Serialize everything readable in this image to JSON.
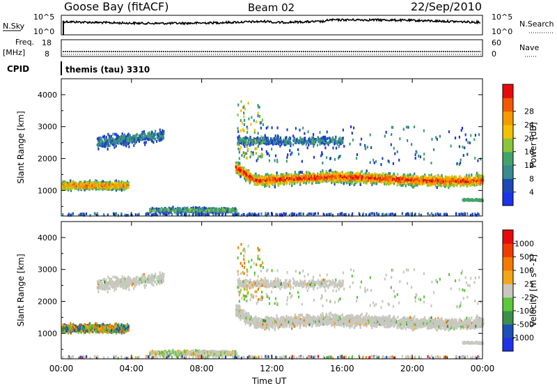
{
  "header": {
    "station": "Goose Bay (fitACF)",
    "beam": "Beam 02",
    "date": "22/Sep/2010"
  },
  "noise_panel": {
    "left_label": "N.Sky",
    "right_label": "N.Search",
    "tick_top": "10^5",
    "tick_bottom": "10^0"
  },
  "freq_panel": {
    "left_label_top": "Freq.",
    "left_label_unit": "[MHz]",
    "left_ticks": [
      "18",
      "8"
    ],
    "right_label": "Nave",
    "right_ticks": [
      "60",
      "0"
    ]
  },
  "cpid": {
    "label": "CPID",
    "program": "themis (tau) 3310"
  },
  "chart_data": [
    {
      "type": "heatmap",
      "parameter": "Power",
      "ylabel": "Slant Range [km]",
      "xlabel": "Time UT",
      "x_ticks": [
        "00:00",
        "04:00",
        "08:00",
        "12:00",
        "16:00",
        "20:00",
        "00:00"
      ],
      "x_range_hours": [
        0,
        24
      ],
      "y_ticks": [
        1000,
        2000,
        3000,
        4000
      ],
      "ylim": [
        200,
        4500
      ],
      "colorbar": {
        "label": "Power [dB]",
        "ticks": [
          "4",
          "8",
          "12",
          "16",
          "20",
          "24",
          "28"
        ],
        "colors": [
          "#1c33e8",
          "#1b49b5",
          "#3a8a8f",
          "#42a36a",
          "#8bc43a",
          "#f2c200",
          "#f59a00",
          "#f25a00",
          "#e80a0a"
        ]
      },
      "features": [
        {
          "name": "Main echo band",
          "t_start": 9.9,
          "t_end": 24,
          "range_center_km": 1350,
          "range_spread_km": 280,
          "peak_power_db": 28
        },
        {
          "name": "Early near echoes",
          "t_start": 0,
          "t_end": 3.8,
          "range_center_km": 1150,
          "range_spread_km": 200,
          "peak_power_db": 24
        },
        {
          "name": "Far echoes",
          "t_start": 2.0,
          "t_end": 5.8,
          "range_center_km": 2500,
          "range_spread_km": 300,
          "peak_power_db": 8
        },
        {
          "name": "Near-range echoes",
          "t_start": 5.0,
          "t_end": 10.0,
          "range_center_km": 380,
          "range_spread_km": 120,
          "peak_power_db": 12
        },
        {
          "name": "Upper patch",
          "t_start": 10.0,
          "t_end": 16.0,
          "range_center_km": 2550,
          "range_spread_km": 200,
          "peak_power_db": 8
        }
      ]
    },
    {
      "type": "heatmap",
      "parameter": "Velocity",
      "ylabel": "Slant Range [km]",
      "xlabel": "Time UT",
      "x_ticks": [
        "00:00",
        "04:00",
        "08:00",
        "12:00",
        "16:00",
        "20:00",
        "00:00"
      ],
      "x_range_hours": [
        0,
        24
      ],
      "y_ticks": [
        1000,
        2000,
        3000,
        4000
      ],
      "ylim": [
        200,
        4500
      ],
      "colorbar": {
        "label": "Velocity [m s^-1]",
        "ticks": [
          "1000",
          "500",
          "100",
          "25",
          "-25",
          "-100",
          "-500",
          "-1000"
        ],
        "colors": [
          "#1c33e8",
          "#1c4fb8",
          "#3b8f4a",
          "#5cc83a",
          "#c8c8c0",
          "#f5a51a",
          "#f57a00",
          "#f23a00",
          "#e80a0a"
        ]
      },
      "dominant_velocity_class": "-25 to 25"
    }
  ]
}
